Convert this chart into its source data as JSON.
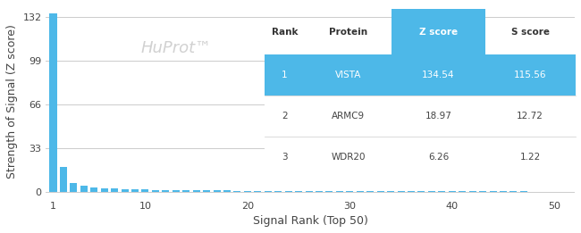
{
  "bar_color": "#4db8e8",
  "background_color": "#ffffff",
  "xlabel": "Signal Rank (Top 50)",
  "ylabel": "Strength of Signal (Z score)",
  "watermark": "HuProt™",
  "yticks": [
    0,
    33,
    66,
    99,
    132
  ],
  "xticks": [
    1,
    10,
    20,
    30,
    40,
    50
  ],
  "xlim": [
    0.3,
    52
  ],
  "ylim": [
    -4,
    140
  ],
  "grid_color": "#cccccc",
  "table_header_bg": "#4db8e8",
  "table_row1_bg": "#4db8e8",
  "table_text_color_header": "#333333",
  "table_text_color_row1": "#ffffff",
  "table_text_color_rows": "#444444",
  "table_cols": [
    "Rank",
    "Protein",
    "Z score",
    "S score"
  ],
  "table_data": [
    [
      "1",
      "VISTA",
      "134.54",
      "115.56"
    ],
    [
      "2",
      "ARMC9",
      "18.97",
      "12.72"
    ],
    [
      "3",
      "WDR20",
      "6.26",
      "1.22"
    ]
  ],
  "n_bars": 50,
  "bar_values_approx": [
    134.54,
    18.97,
    6.26,
    4.5,
    3.2,
    2.8,
    2.3,
    2.0,
    1.8,
    1.6,
    1.4,
    1.3,
    1.2,
    1.1,
    1.0,
    0.95,
    0.9,
    0.85,
    0.8,
    0.75,
    0.7,
    0.68,
    0.65,
    0.62,
    0.6,
    0.58,
    0.55,
    0.53,
    0.51,
    0.49,
    0.47,
    0.45,
    0.43,
    0.41,
    0.39,
    0.37,
    0.35,
    0.33,
    0.31,
    0.29,
    0.27,
    0.25,
    0.23,
    0.21,
    0.19,
    0.17,
    0.15,
    0.13,
    0.11,
    0.09
  ]
}
